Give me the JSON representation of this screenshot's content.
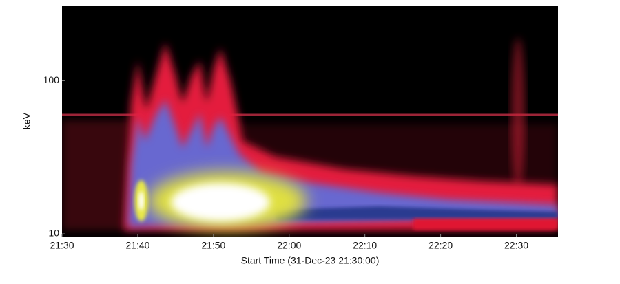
{
  "chart_data": {
    "type": "spectrogram",
    "x_label": "Start Time (31-Dec-23 21:30:00)",
    "y_label": "keV",
    "xlim": [
      0,
      65.5
    ],
    "xticks": [
      {
        "value": 0,
        "label": "21:30"
      },
      {
        "value": 10,
        "label": "21:40"
      },
      {
        "value": 20,
        "label": "21:50"
      },
      {
        "value": 30,
        "label": "22:00"
      },
      {
        "value": 40,
        "label": "22:10"
      },
      {
        "value": 50,
        "label": "22:20"
      },
      {
        "value": 60,
        "label": "22:30"
      }
    ],
    "ylim": [
      9.5,
      310
    ],
    "yticks": [
      10,
      100
    ],
    "log_y": true
  }
}
